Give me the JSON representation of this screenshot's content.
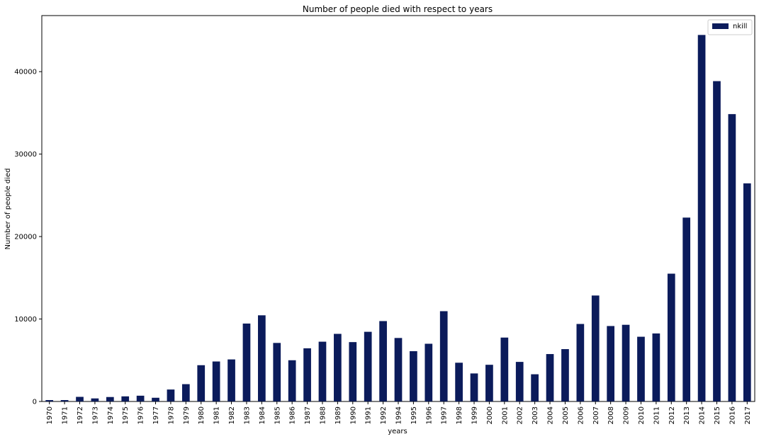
{
  "chart_data": {
    "type": "bar",
    "title": "Number of people died with respect to years",
    "xlabel": "years",
    "ylabel": "Number of people died",
    "ylim": [
      0,
      46800
    ],
    "yticks": [
      0,
      10000,
      20000,
      30000,
      40000
    ],
    "grid": false,
    "legend_position": "top-right",
    "categories": [
      "1970",
      "1971",
      "1972",
      "1973",
      "1974",
      "1975",
      "1976",
      "1977",
      "1978",
      "1979",
      "1980",
      "1981",
      "1982",
      "1983",
      "1984",
      "1985",
      "1986",
      "1987",
      "1988",
      "1989",
      "1990",
      "1991",
      "1992",
      "1994",
      "1995",
      "1996",
      "1997",
      "1998",
      "1999",
      "2000",
      "2001",
      "2002",
      "2003",
      "2004",
      "2005",
      "2006",
      "2007",
      "2008",
      "2009",
      "2010",
      "2011",
      "2012",
      "2013",
      "2014",
      "2015",
      "2016",
      "2017"
    ],
    "series": [
      {
        "name": "nkill",
        "color": "#0b1b5b",
        "values": [
          170,
          170,
          560,
          370,
          540,
          620,
          700,
          450,
          1450,
          2100,
          4400,
          4850,
          5100,
          9450,
          10450,
          7100,
          5000,
          6450,
          7250,
          8200,
          7200,
          8450,
          9750,
          7700,
          6100,
          7000,
          10950,
          4700,
          3400,
          4450,
          7750,
          4800,
          3300,
          5750,
          6350,
          9400,
          12850,
          9150,
          9300,
          7850,
          8250,
          15500,
          22300,
          44450,
          38850,
          34850,
          26450
        ]
      }
    ]
  }
}
